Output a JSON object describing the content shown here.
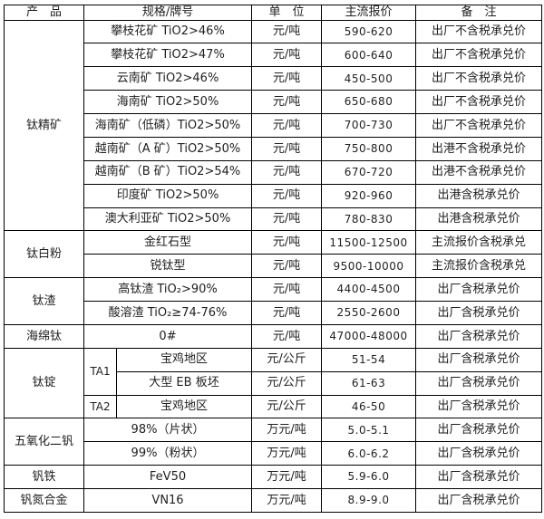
{
  "table": {
    "headers": {
      "product": "产　品",
      "spec": "规格/牌号",
      "unit": "单　位",
      "price": "主流报价",
      "note": "备　注"
    },
    "sections": [
      {
        "product": "钛精矿",
        "rows": [
          {
            "spec": "攀枝花矿 TiO2>46%",
            "unit": "元/吨",
            "price": "590-620",
            "note": "出厂不含税承兑价"
          },
          {
            "spec": "攀枝花矿 TiO2>47%",
            "unit": "元/吨",
            "price": "600-640",
            "note": "出厂不含税承兑价"
          },
          {
            "spec": "云南矿 TiO2>46%",
            "unit": "元/吨",
            "price": "450-500",
            "note": "出厂不含税承兑价"
          },
          {
            "spec": "海南矿 TiO2>50%",
            "unit": "元/吨",
            "price": "650-680",
            "note": "出厂不含税承兑价"
          },
          {
            "spec": "海南矿（低磷）TiO2>50%",
            "unit": "元/吨",
            "price": "700-730",
            "note": "出厂不含税承兑价"
          },
          {
            "spec": "越南矿（A 矿）TiO2>50%",
            "unit": "元/吨",
            "price": "750-800",
            "note": "出港不含税承兑价"
          },
          {
            "spec": "越南矿（B 矿）TiO2>54%",
            "unit": "元/吨",
            "price": "670-720",
            "note": "出港不含税承兑价"
          },
          {
            "spec": "印度矿 TiO2>50%",
            "unit": "元/吨",
            "price": "920-960",
            "note": "出港含税承兑价"
          },
          {
            "spec": "澳大利亚矿 TiO2>50%",
            "unit": "元/吨",
            "price": "780-830",
            "note": "出港含税承兑价"
          }
        ]
      },
      {
        "product": "钛白粉",
        "rows": [
          {
            "spec": "金红石型",
            "unit": "元/吨",
            "price": "11500-12500",
            "note": "主流报价含税承兑"
          },
          {
            "spec": "锐钛型",
            "unit": "元/吨",
            "price": "9500-10000",
            "note": "主流报价含税承兑"
          }
        ]
      },
      {
        "product": "钛渣",
        "rows": [
          {
            "spec": "高钛渣 TiO₂>90%",
            "unit": "元/吨",
            "price": "4400-4500",
            "note": "出厂含税承兑价"
          },
          {
            "spec": "酸溶渣 TiO₂≥74-76%",
            "unit": "元/吨",
            "price": "2550-2600",
            "note": "出厂含税承兑价"
          }
        ]
      },
      {
        "product": "海绵钛",
        "rows": [
          {
            "spec": "0#",
            "unit": "元/吨",
            "price": "47000-48000",
            "note": "出厂含税承兑价"
          }
        ]
      },
      {
        "product": "钛锭",
        "rows": [
          {
            "grade": "TA1",
            "grade_rowspan": 2,
            "spec": "宝鸡地区",
            "unit": "元/公斤",
            "price": "51-54",
            "note": "出厂含税承兑价"
          },
          {
            "spec": "大型 EB 板坯",
            "unit": "元/公斤",
            "price": "61-63",
            "note": "出厂含税承兑价"
          },
          {
            "grade": "TA2",
            "grade_rowspan": 1,
            "spec": "宝鸡地区",
            "unit": "元/公斤",
            "price": "46-50",
            "note": "出厂含税承兑价"
          }
        ]
      },
      {
        "product": "五氧化二钒",
        "rows": [
          {
            "spec": "98%（片状）",
            "unit": "万元/吨",
            "price": "5.0-5.1",
            "note": "出厂含税承兑价"
          },
          {
            "spec": "99%（粉状）",
            "unit": "万元/吨",
            "price": "6.0-6.2",
            "note": "出厂含税承兑价"
          }
        ]
      },
      {
        "product": "钒铁",
        "rows": [
          {
            "spec": "FeV50",
            "unit": "万元/吨",
            "price": "5.9-6.0",
            "note": "出厂含税承兑价"
          }
        ]
      },
      {
        "product": "钒氮合金",
        "rows": [
          {
            "spec": "VN16",
            "unit": "万元/吨",
            "price": "8.9-9.0",
            "note": "出厂含税承兑价"
          }
        ]
      }
    ]
  }
}
